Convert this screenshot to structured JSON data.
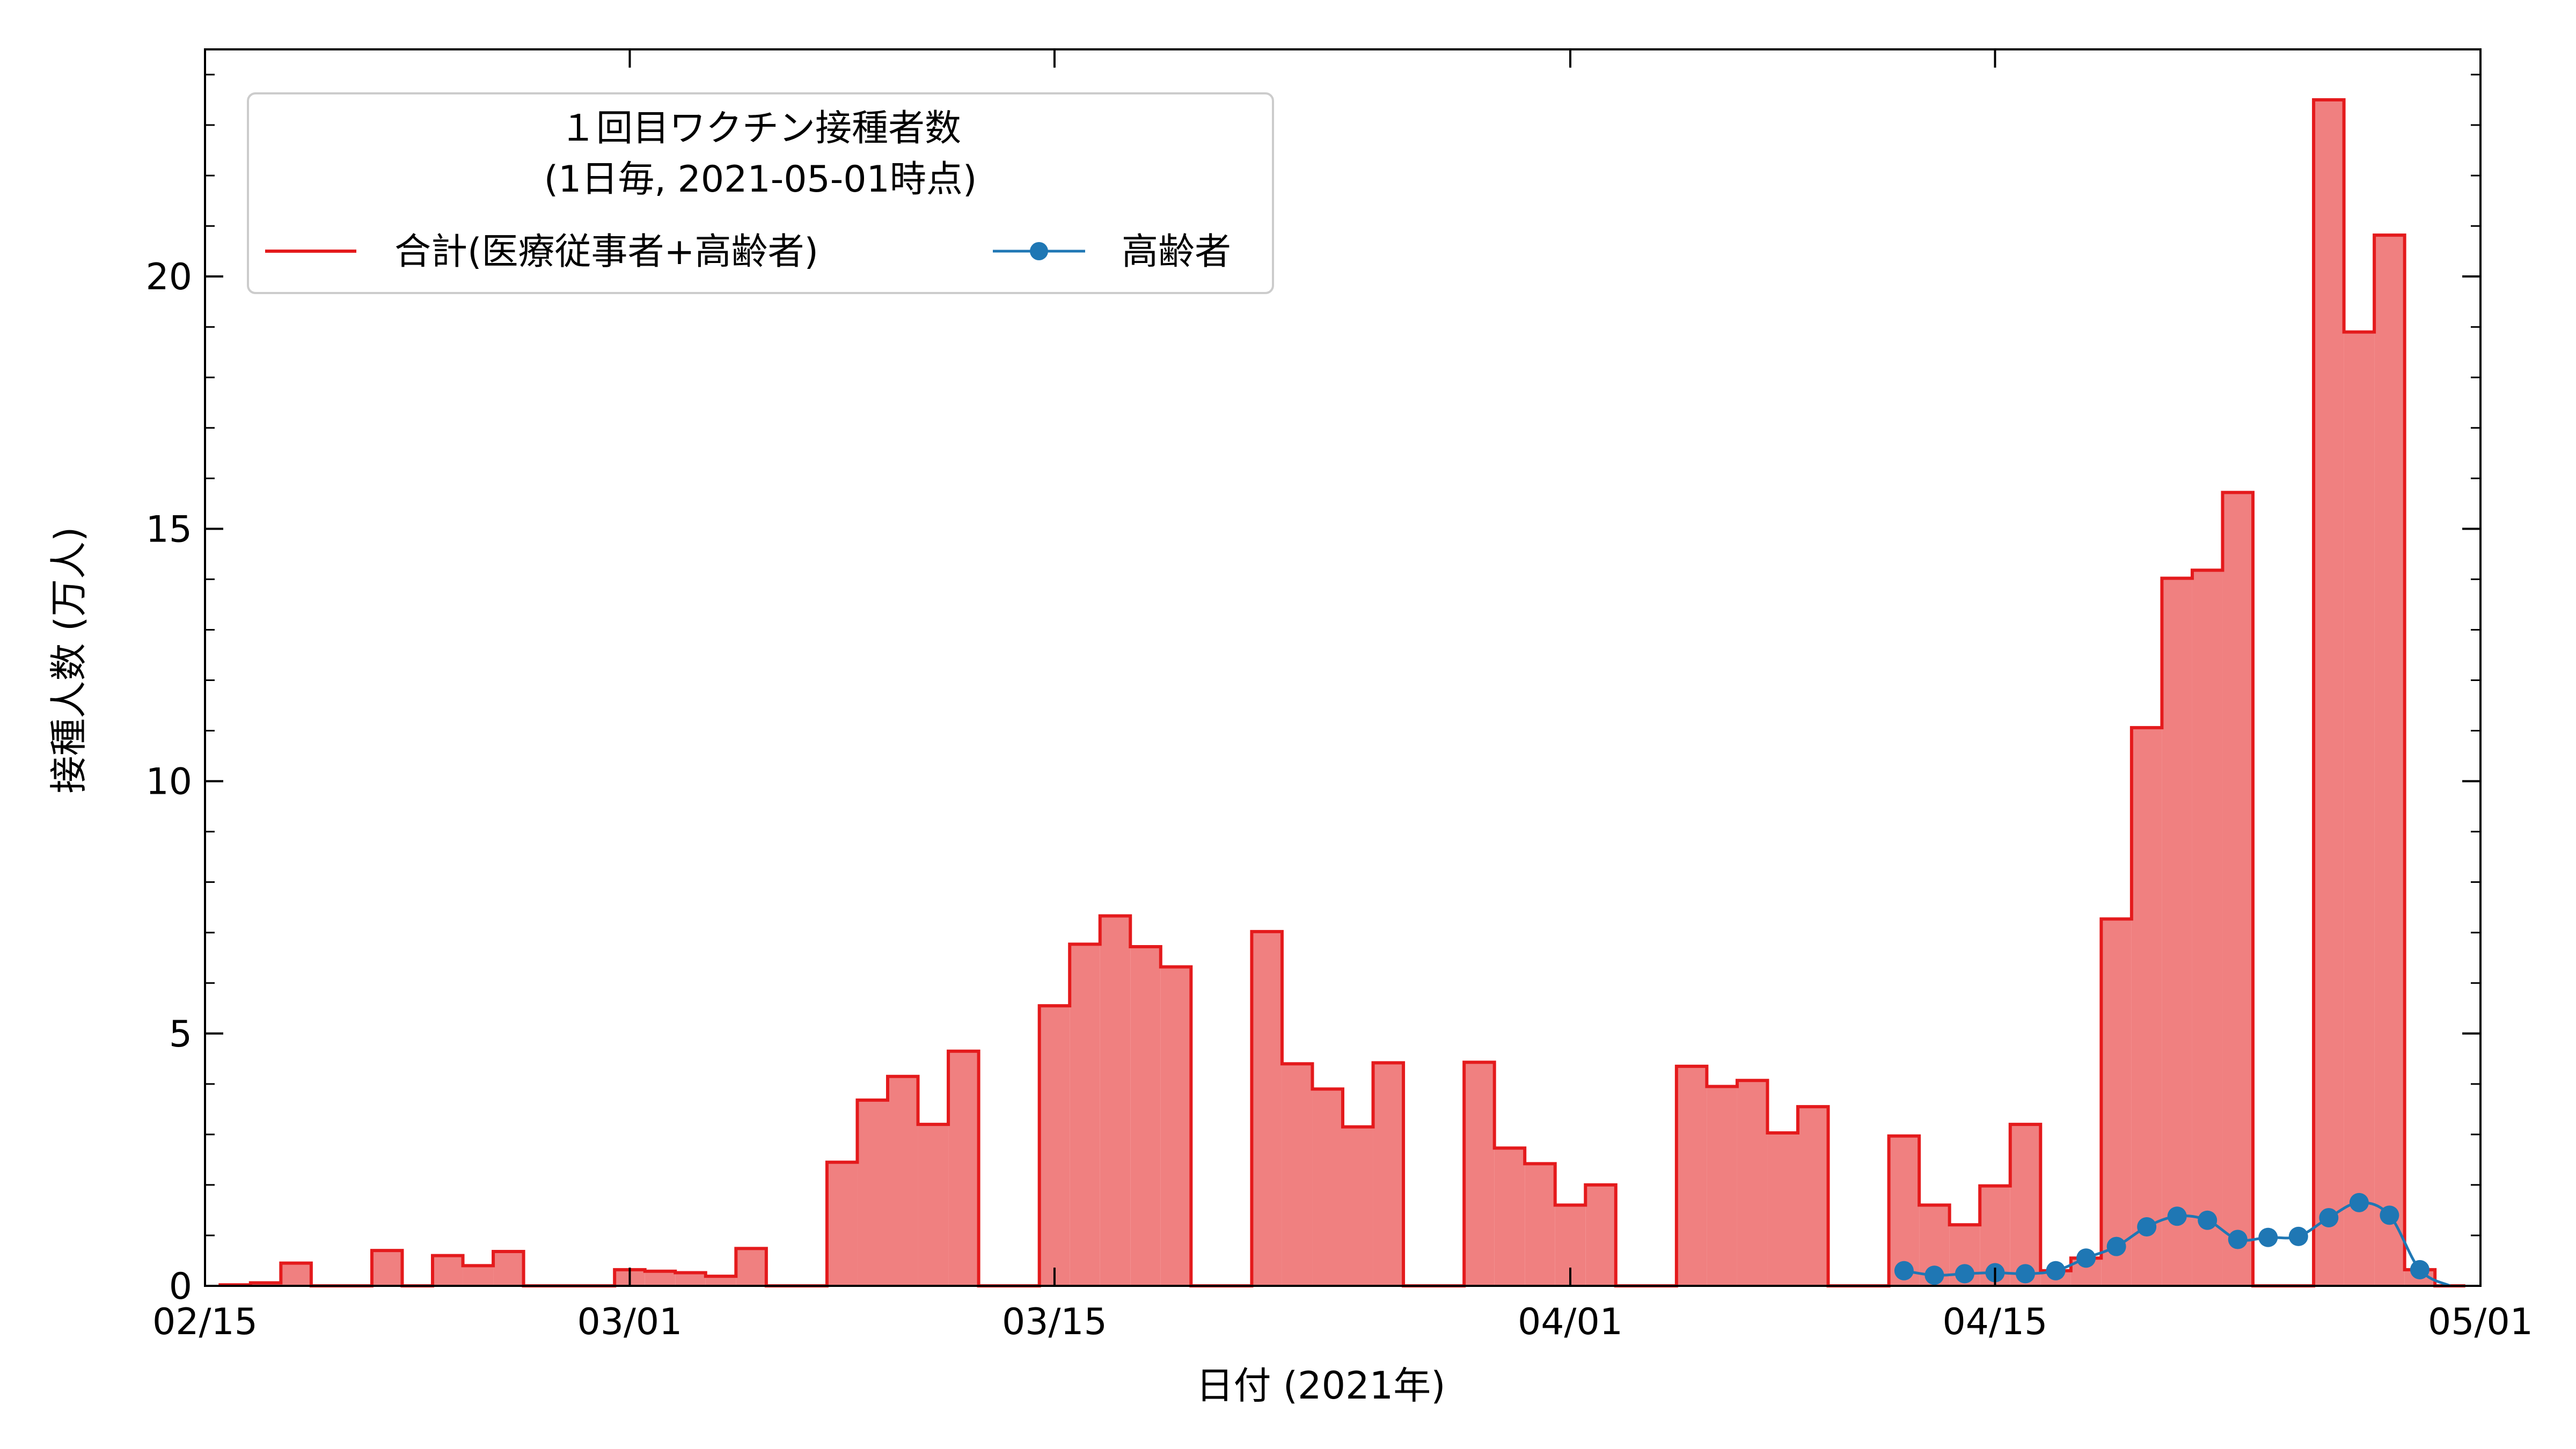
{
  "chart_data": {
    "type": "bar",
    "xlabel": "日付 (2021年)",
    "ylabel": "接種人数 (万人)",
    "legend_title": [
      "１回目ワクチン接種者数",
      "(1日毎, 2021-05-01時点)"
    ],
    "legend_placement": "top-left",
    "x_range": [
      "2021-02-15",
      "2021-05-01"
    ],
    "ylim": [
      0,
      24.5
    ],
    "x_ticks": [
      "02/15",
      "03/01",
      "03/15",
      "04/01",
      "04/15",
      "05/01"
    ],
    "y_ticks": [
      "0",
      "5",
      "10",
      "15",
      "20"
    ],
    "grid": false,
    "colors": {
      "total_edge": "#e41a1c",
      "total_fill": "#f08080",
      "elderly": "#1f77b4"
    },
    "series": [
      {
        "name": "合計(医療従事者+高齢者)",
        "style": "step-filled",
        "x": [
          "02/16",
          "02/17",
          "02/18",
          "02/19",
          "02/20",
          "02/21",
          "02/22",
          "02/23",
          "02/24",
          "02/25",
          "02/26",
          "02/27",
          "02/28",
          "03/01",
          "03/02",
          "03/03",
          "03/04",
          "03/05",
          "03/06",
          "03/07",
          "03/08",
          "03/09",
          "03/10",
          "03/11",
          "03/12",
          "03/13",
          "03/14",
          "03/15",
          "03/16",
          "03/17",
          "03/18",
          "03/19",
          "03/20",
          "03/21",
          "03/22",
          "03/23",
          "03/24",
          "03/25",
          "03/26",
          "03/27",
          "03/28",
          "03/29",
          "03/30",
          "03/31",
          "04/01",
          "04/02",
          "04/03",
          "04/04",
          "04/05",
          "04/06",
          "04/07",
          "04/08",
          "04/09",
          "04/10",
          "04/11",
          "04/12",
          "04/13",
          "04/14",
          "04/15",
          "04/16",
          "04/17",
          "04/18",
          "04/19",
          "04/20",
          "04/21",
          "04/22",
          "04/23",
          "04/24",
          "04/25",
          "04/26",
          "04/27",
          "04/28",
          "04/29",
          "04/30"
        ],
        "values": [
          0.02,
          0.06,
          0.45,
          0,
          0,
          0.7,
          0,
          0.6,
          0.4,
          0.68,
          0,
          0,
          0,
          0.32,
          0.29,
          0.26,
          0.19,
          0.74,
          0,
          0,
          2.45,
          3.68,
          4.15,
          3.2,
          4.65,
          0,
          0,
          5.55,
          6.77,
          7.33,
          6.72,
          6.32,
          0,
          0,
          7.02,
          4.4,
          3.9,
          3.15,
          4.42,
          0,
          0,
          4.43,
          2.73,
          2.42,
          1.6,
          2.0,
          0,
          0,
          4.35,
          3.95,
          4.07,
          3.03,
          3.55,
          0,
          0,
          2.97,
          1.6,
          1.21,
          1.98,
          3.2,
          0.3,
          0.55,
          7.27,
          11.06,
          14.02,
          14.18,
          15.72,
          0,
          0,
          23.5,
          18.9,
          20.82,
          0.32,
          0
        ]
      },
      {
        "name": "高齢者",
        "style": "line-marker",
        "x": [
          "04/12",
          "04/13",
          "04/14",
          "04/15",
          "04/16",
          "04/17",
          "04/18",
          "04/19",
          "04/20",
          "04/21",
          "04/22",
          "04/23",
          "04/24",
          "04/25",
          "04/26",
          "04/27",
          "04/28",
          "04/29",
          "04/30"
        ],
        "values": [
          0.3,
          0.21,
          0.24,
          0.26,
          0.24,
          0.3,
          0.55,
          0.78,
          1.17,
          1.38,
          1.3,
          0.92,
          0.96,
          0.98,
          1.35,
          1.65,
          1.4,
          0.32,
          0
        ]
      }
    ]
  }
}
